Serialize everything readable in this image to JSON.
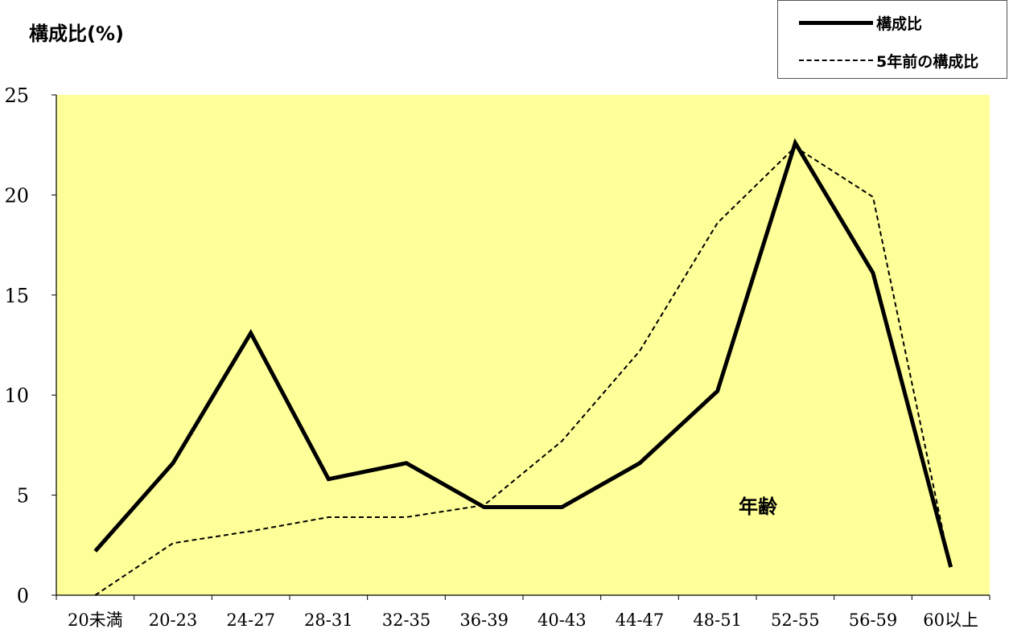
{
  "chart_data": {
    "type": "line",
    "ylabel": "構成比(%)",
    "xlabel": "年齢",
    "categories": [
      "20未満",
      "20-23",
      "24-27",
      "28-31",
      "32-35",
      "36-39",
      "40-43",
      "44-47",
      "48-51",
      "52-55",
      "56-59",
      "60以上"
    ],
    "ylim": [
      0,
      25
    ],
    "yticks": [
      "0",
      "5",
      "10",
      "15",
      "20",
      "25"
    ],
    "grid": false,
    "legend_position": "top-right",
    "plot_background": "#FFFF99",
    "series": [
      {
        "name": "構成比",
        "style": "solid",
        "color": "#000000",
        "values": [
          2.2,
          6.6,
          13.1,
          5.8,
          6.6,
          4.4,
          4.4,
          6.6,
          10.2,
          22.6,
          16.1,
          1.4
        ]
      },
      {
        "name": "5年前の構成比",
        "style": "dashed",
        "color": "#000000",
        "values": [
          0.0,
          2.6,
          3.2,
          3.9,
          3.9,
          4.5,
          7.7,
          12.2,
          18.6,
          22.4,
          19.9,
          1.3
        ]
      }
    ]
  }
}
